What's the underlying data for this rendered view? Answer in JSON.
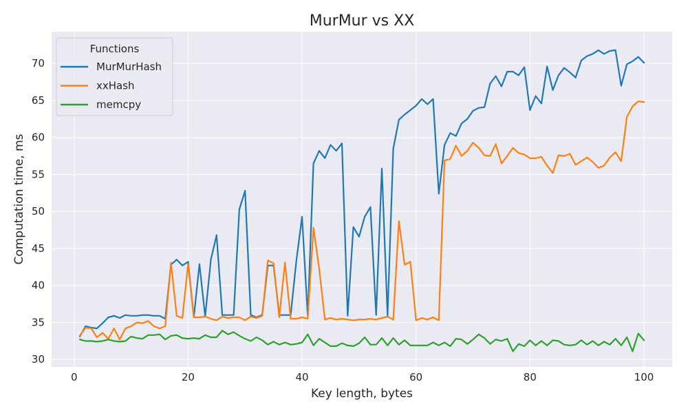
{
  "chart_data": {
    "type": "line",
    "title": "MurMur vs XX",
    "xlabel": "Key length, bytes",
    "ylabel": "Computation time, ms",
    "xlim": [
      -3.95,
      104.95
    ],
    "ylim": [
      29.0,
      74.3
    ],
    "xticks": [
      0,
      20,
      40,
      60,
      80,
      100
    ],
    "yticks": [
      30,
      35,
      40,
      45,
      50,
      55,
      60,
      65,
      70
    ],
    "grid": true,
    "legend": {
      "title": "Functions",
      "placement": "top-left"
    },
    "x": [
      1,
      2,
      3,
      4,
      5,
      6,
      7,
      8,
      9,
      10,
      11,
      12,
      13,
      14,
      15,
      16,
      17,
      18,
      19,
      20,
      21,
      22,
      23,
      24,
      25,
      26,
      27,
      28,
      29,
      30,
      31,
      32,
      33,
      34,
      35,
      36,
      37,
      38,
      39,
      40,
      41,
      42,
      43,
      44,
      45,
      46,
      47,
      48,
      49,
      50,
      51,
      52,
      53,
      54,
      55,
      56,
      57,
      58,
      59,
      60,
      61,
      62,
      63,
      64,
      65,
      66,
      67,
      68,
      69,
      70,
      71,
      72,
      73,
      74,
      75,
      76,
      77,
      78,
      79,
      80,
      81,
      82,
      83,
      84,
      85,
      86,
      87,
      88,
      89,
      90,
      91,
      92,
      93,
      94,
      95,
      96,
      97,
      98,
      99,
      100
    ],
    "series": [
      {
        "name": "MurMurHash",
        "color": "#1f77b4",
        "values": [
          33.1,
          34.5,
          34.3,
          34.2,
          34.9,
          35.7,
          35.9,
          35.6,
          36.0,
          35.9,
          35.9,
          36.0,
          36.0,
          35.9,
          35.9,
          35.5,
          42.8,
          43.5,
          42.7,
          43.2,
          35.7,
          42.9,
          35.8,
          43.5,
          46.8,
          36.0,
          36.0,
          36.0,
          50.3,
          52.8,
          36.0,
          35.7,
          36.0,
          42.7,
          42.7,
          36.0,
          36.0,
          36.0,
          43.3,
          49.3,
          35.9,
          56.5,
          58.2,
          57.2,
          59.0,
          58.2,
          59.2,
          35.9,
          47.9,
          46.6,
          49.3,
          50.6,
          36.0,
          55.8,
          35.9,
          58.5,
          62.4,
          63.1,
          63.7,
          64.3,
          65.2,
          64.5,
          65.2,
          52.4,
          59.0,
          60.6,
          60.2,
          61.9,
          62.5,
          63.6,
          64.0,
          64.1,
          67.3,
          68.3,
          66.9,
          68.9,
          68.9,
          68.4,
          69.5,
          63.7,
          65.6,
          64.6,
          69.6,
          66.4,
          68.4,
          69.4,
          68.8,
          68.1,
          70.4,
          71.0,
          71.3,
          71.8,
          71.3,
          71.7,
          71.8,
          67.0,
          69.9,
          70.3,
          70.9,
          70.1
        ]
      },
      {
        "name": "xxHash",
        "color": "#ff7f0e",
        "values": [
          33.2,
          34.3,
          34.2,
          33.0,
          33.6,
          32.8,
          34.2,
          32.7,
          34.2,
          34.5,
          35.0,
          34.9,
          35.2,
          34.5,
          34.2,
          34.5,
          43.1,
          35.9,
          35.6,
          42.9,
          35.7,
          35.7,
          35.8,
          35.5,
          35.3,
          35.8,
          35.6,
          35.7,
          35.7,
          35.3,
          35.8,
          35.6,
          35.9,
          43.4,
          43.0,
          35.7,
          43.1,
          35.5,
          35.5,
          35.7,
          35.5,
          47.8,
          42.3,
          35.4,
          35.6,
          35.4,
          35.5,
          35.4,
          35.3,
          35.4,
          35.4,
          35.5,
          35.4,
          35.6,
          35.8,
          35.4,
          48.7,
          42.8,
          43.2,
          35.3,
          35.6,
          35.4,
          35.7,
          35.3,
          56.9,
          57.1,
          58.9,
          57.5,
          58.2,
          59.3,
          58.6,
          57.6,
          57.5,
          59.1,
          56.5,
          57.5,
          58.6,
          57.9,
          57.7,
          57.2,
          57.2,
          57.4,
          56.2,
          55.2,
          57.6,
          57.5,
          57.8,
          56.3,
          56.8,
          57.3,
          56.7,
          55.9,
          56.2,
          57.3,
          58.0,
          56.8,
          62.8,
          64.2,
          64.9,
          64.8
        ]
      },
      {
        "name": "memcpy",
        "color": "#2ca02c",
        "values": [
          32.7,
          32.5,
          32.5,
          32.4,
          32.5,
          32.7,
          32.5,
          32.4,
          32.5,
          33.1,
          32.9,
          32.8,
          33.3,
          33.3,
          33.4,
          32.7,
          33.2,
          33.3,
          32.9,
          32.8,
          32.9,
          32.8,
          33.3,
          33.0,
          33.0,
          33.9,
          33.4,
          33.7,
          33.2,
          32.8,
          32.5,
          33.0,
          32.6,
          32.0,
          32.4,
          32.0,
          32.3,
          32.0,
          32.1,
          32.3,
          33.4,
          31.9,
          32.8,
          32.3,
          31.8,
          31.8,
          32.2,
          31.9,
          31.8,
          32.2,
          33.0,
          32.0,
          32.0,
          32.9,
          31.9,
          32.9,
          32.0,
          32.6,
          31.9,
          31.9,
          31.9,
          31.9,
          32.3,
          31.9,
          32.3,
          31.8,
          32.8,
          32.7,
          32.1,
          32.7,
          33.4,
          32.9,
          32.1,
          32.7,
          32.5,
          32.8,
          31.1,
          32.1,
          31.8,
          32.6,
          31.9,
          32.5,
          31.9,
          32.6,
          32.5,
          32.0,
          31.9,
          32.0,
          32.6,
          32.0,
          32.5,
          31.9,
          32.4,
          32.0,
          32.8,
          31.9,
          33.0,
          31.1,
          33.5,
          32.6
        ]
      }
    ]
  }
}
